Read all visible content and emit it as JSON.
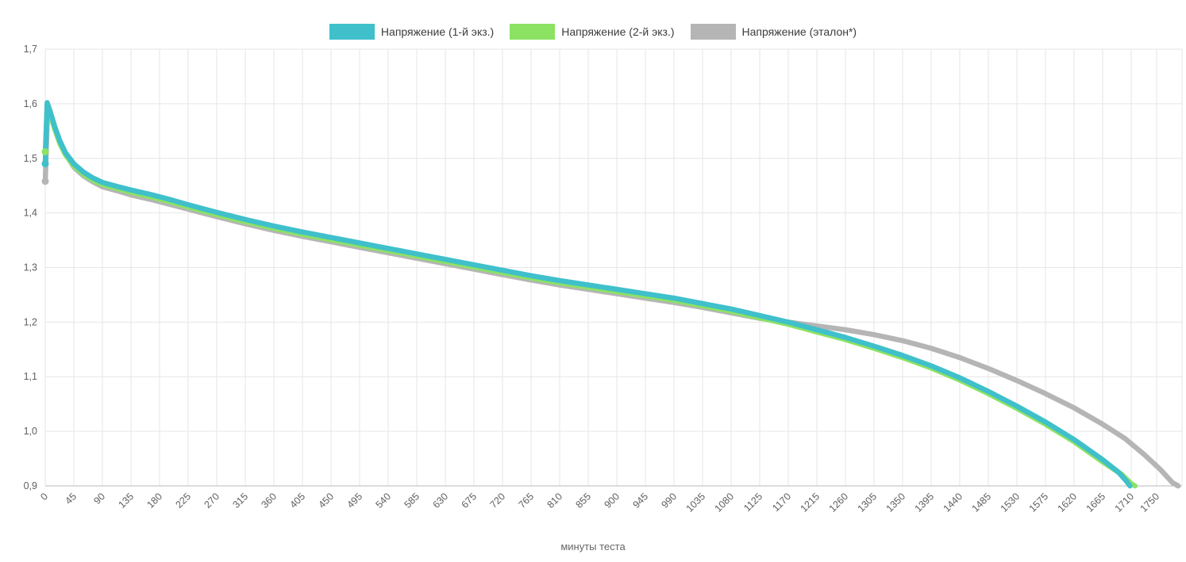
{
  "colors": {
    "series1": "#3fc0cb",
    "series2": "#8ce263",
    "series3": "#b5b5b5",
    "grid": "#e6e6e6",
    "axis_line": "#b9b9b9",
    "tick_text": "#606060",
    "legend_text": "#3c3c3c"
  },
  "chart_data": {
    "type": "line",
    "title": "",
    "xlabel": "минуты теста",
    "ylabel": "",
    "grid": true,
    "legend_position": "top",
    "xlim": [
      0,
      1790
    ],
    "ylim": [
      0.9,
      1.7
    ],
    "x_ticks": [
      0,
      45,
      90,
      135,
      180,
      225,
      270,
      315,
      360,
      405,
      450,
      495,
      540,
      585,
      630,
      675,
      720,
      765,
      810,
      855,
      900,
      945,
      990,
      1035,
      1080,
      1125,
      1170,
      1215,
      1260,
      1305,
      1350,
      1395,
      1440,
      1485,
      1530,
      1575,
      1620,
      1665,
      1710,
      1750
    ],
    "x_tick_labels": [
      "0",
      "45",
      "90",
      "135",
      "180",
      "225",
      "270",
      "315",
      "360",
      "405",
      "450",
      "495",
      "540",
      "585",
      "630",
      "675",
      "720",
      "765",
      "810",
      "855",
      "900",
      "945",
      "990",
      "1035",
      "1080",
      "1125",
      "1170",
      "1215",
      "1260",
      "1305",
      "1350",
      "1395",
      "1440",
      "1485",
      "1530",
      "1575",
      "1620",
      "1665",
      "1710",
      "1750"
    ],
    "y_ticks": [
      0.9,
      1.0,
      1.1,
      1.2,
      1.3,
      1.4,
      1.5,
      1.6,
      1.7
    ],
    "y_tick_labels": [
      "0,9",
      "1,0",
      "1,1",
      "1,2",
      "1,3",
      "1,4",
      "1,5",
      "1,6",
      "1,7"
    ],
    "series": [
      {
        "name": "Напряжение (1-й экз.)",
        "color": "#3fc0cb",
        "points": [
          [
            0,
            1.49
          ],
          [
            3,
            1.602
          ],
          [
            8,
            1.585
          ],
          [
            15,
            1.558
          ],
          [
            23,
            1.532
          ],
          [
            32,
            1.51
          ],
          [
            45,
            1.49
          ],
          [
            60,
            1.475
          ],
          [
            75,
            1.464
          ],
          [
            90,
            1.456
          ],
          [
            115,
            1.448
          ],
          [
            135,
            1.442
          ],
          [
            165,
            1.434
          ],
          [
            195,
            1.425
          ],
          [
            225,
            1.415
          ],
          [
            270,
            1.401
          ],
          [
            315,
            1.388
          ],
          [
            360,
            1.376
          ],
          [
            405,
            1.365
          ],
          [
            450,
            1.355
          ],
          [
            495,
            1.345
          ],
          [
            540,
            1.335
          ],
          [
            585,
            1.325
          ],
          [
            630,
            1.315
          ],
          [
            675,
            1.305
          ],
          [
            720,
            1.295
          ],
          [
            765,
            1.285
          ],
          [
            810,
            1.276
          ],
          [
            855,
            1.268
          ],
          [
            900,
            1.26
          ],
          [
            945,
            1.252
          ],
          [
            990,
            1.244
          ],
          [
            1035,
            1.234
          ],
          [
            1080,
            1.224
          ],
          [
            1125,
            1.212
          ],
          [
            1170,
            1.2
          ],
          [
            1215,
            1.186
          ],
          [
            1260,
            1.172
          ],
          [
            1305,
            1.156
          ],
          [
            1350,
            1.139
          ],
          [
            1395,
            1.12
          ],
          [
            1440,
            1.098
          ],
          [
            1485,
            1.073
          ],
          [
            1530,
            1.046
          ],
          [
            1575,
            1.017
          ],
          [
            1620,
            0.985
          ],
          [
            1665,
            0.948
          ],
          [
            1690,
            0.925
          ],
          [
            1703,
            0.908
          ],
          [
            1708,
            0.898
          ]
        ]
      },
      {
        "name": "Напряжение (2-й экз.)",
        "color": "#8ce263",
        "points": [
          [
            0,
            1.512
          ],
          [
            3,
            1.597
          ],
          [
            8,
            1.58
          ],
          [
            15,
            1.553
          ],
          [
            23,
            1.527
          ],
          [
            32,
            1.506
          ],
          [
            45,
            1.486
          ],
          [
            60,
            1.471
          ],
          [
            75,
            1.46
          ],
          [
            90,
            1.452
          ],
          [
            115,
            1.444
          ],
          [
            135,
            1.438
          ],
          [
            165,
            1.43
          ],
          [
            195,
            1.421
          ],
          [
            225,
            1.411
          ],
          [
            270,
            1.397
          ],
          [
            315,
            1.384
          ],
          [
            360,
            1.372
          ],
          [
            405,
            1.361
          ],
          [
            450,
            1.351
          ],
          [
            495,
            1.341
          ],
          [
            540,
            1.331
          ],
          [
            585,
            1.321
          ],
          [
            630,
            1.311
          ],
          [
            675,
            1.301
          ],
          [
            720,
            1.291
          ],
          [
            765,
            1.281
          ],
          [
            810,
            1.272
          ],
          [
            855,
            1.264
          ],
          [
            900,
            1.256
          ],
          [
            945,
            1.248
          ],
          [
            990,
            1.24
          ],
          [
            1035,
            1.23
          ],
          [
            1080,
            1.22
          ],
          [
            1125,
            1.208
          ],
          [
            1170,
            1.196
          ],
          [
            1215,
            1.182
          ],
          [
            1260,
            1.168
          ],
          [
            1305,
            1.152
          ],
          [
            1350,
            1.135
          ],
          [
            1395,
            1.116
          ],
          [
            1440,
            1.094
          ],
          [
            1485,
            1.069
          ],
          [
            1530,
            1.042
          ],
          [
            1575,
            1.013
          ],
          [
            1620,
            0.981
          ],
          [
            1665,
            0.944
          ],
          [
            1695,
            0.921
          ],
          [
            1710,
            0.904
          ],
          [
            1716,
            0.897
          ]
        ]
      },
      {
        "name": "Напряжение (эталон*)",
        "color": "#b5b5b5",
        "points": [
          [
            0,
            1.458
          ],
          [
            4,
            1.598
          ],
          [
            12,
            1.565
          ],
          [
            22,
            1.532
          ],
          [
            33,
            1.506
          ],
          [
            45,
            1.484
          ],
          [
            60,
            1.468
          ],
          [
            75,
            1.457
          ],
          [
            90,
            1.448
          ],
          [
            115,
            1.44
          ],
          [
            135,
            1.433
          ],
          [
            165,
            1.425
          ],
          [
            195,
            1.416
          ],
          [
            225,
            1.407
          ],
          [
            270,
            1.393
          ],
          [
            315,
            1.38
          ],
          [
            360,
            1.368
          ],
          [
            405,
            1.357
          ],
          [
            450,
            1.347
          ],
          [
            495,
            1.337
          ],
          [
            540,
            1.327
          ],
          [
            585,
            1.317
          ],
          [
            630,
            1.307
          ],
          [
            675,
            1.297
          ],
          [
            720,
            1.287
          ],
          [
            765,
            1.277
          ],
          [
            810,
            1.268
          ],
          [
            855,
            1.26
          ],
          [
            900,
            1.252
          ],
          [
            945,
            1.244
          ],
          [
            990,
            1.236
          ],
          [
            1035,
            1.227
          ],
          [
            1080,
            1.217
          ],
          [
            1125,
            1.207
          ],
          [
            1170,
            1.2
          ],
          [
            1215,
            1.193
          ],
          [
            1260,
            1.186
          ],
          [
            1305,
            1.177
          ],
          [
            1350,
            1.166
          ],
          [
            1395,
            1.152
          ],
          [
            1440,
            1.135
          ],
          [
            1485,
            1.115
          ],
          [
            1530,
            1.093
          ],
          [
            1575,
            1.069
          ],
          [
            1620,
            1.043
          ],
          [
            1665,
            1.013
          ],
          [
            1700,
            0.987
          ],
          [
            1730,
            0.958
          ],
          [
            1755,
            0.931
          ],
          [
            1775,
            0.906
          ],
          [
            1784,
            0.896
          ]
        ]
      }
    ]
  }
}
